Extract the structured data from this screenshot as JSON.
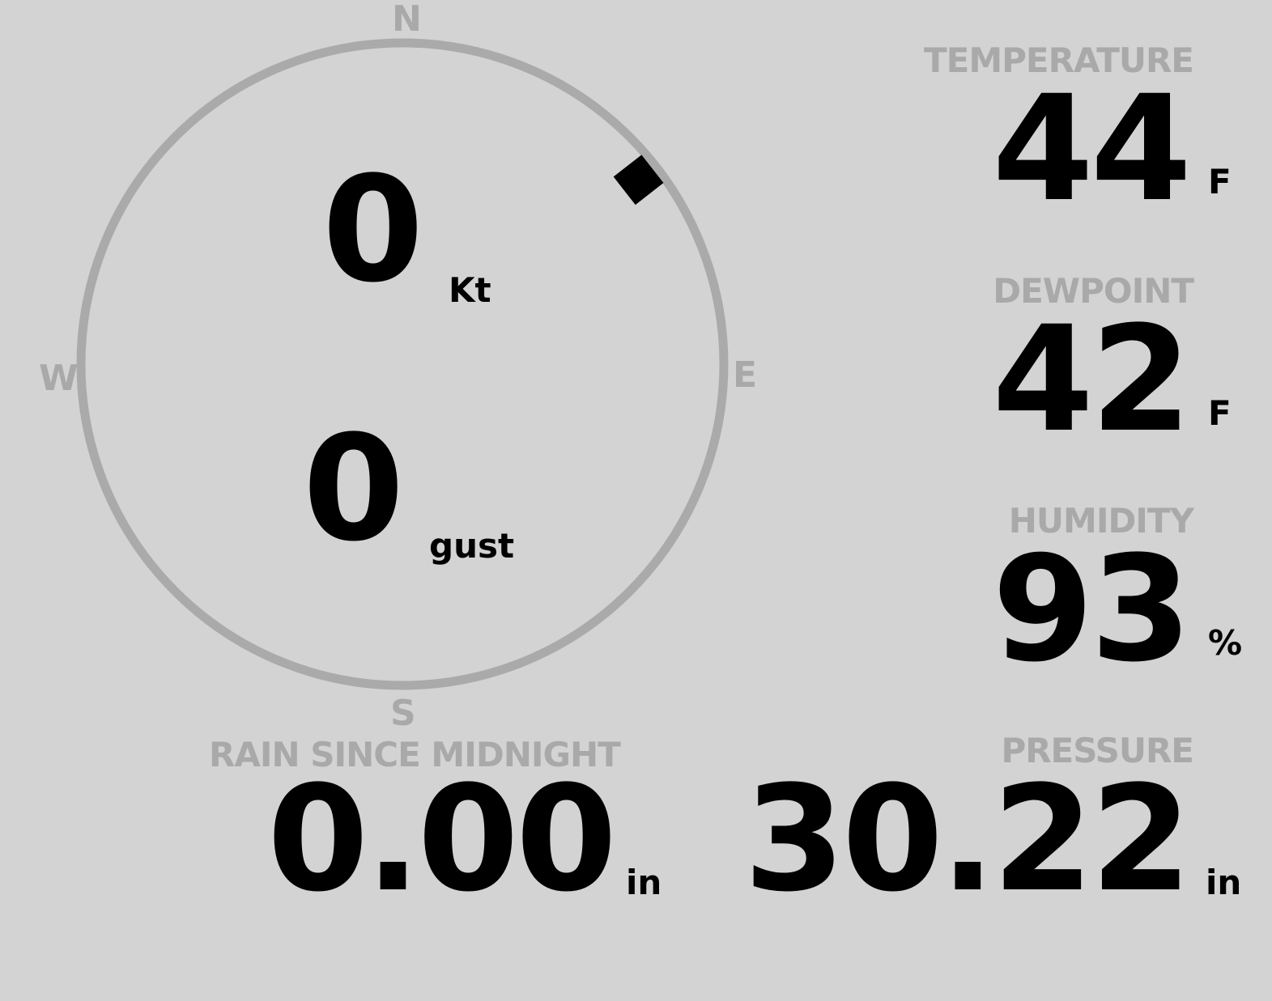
{
  "compass": {
    "n": "N",
    "e": "E",
    "s": "S",
    "w": "W",
    "wind_direction_deg": 52,
    "ring_color": "#aaaaaa"
  },
  "wind": {
    "speed": "0",
    "speed_unit": "Kt",
    "gust": "0",
    "gust_label": "gust"
  },
  "temperature": {
    "label": "TEMPERATURE",
    "value": "44",
    "unit": "F"
  },
  "dewpoint": {
    "label": "DEWPOINT",
    "value": "42",
    "unit": "F"
  },
  "humidity": {
    "label": "HUMIDITY",
    "value": "93",
    "unit": "%"
  },
  "rain": {
    "label": "RAIN SINCE MIDNIGHT",
    "value": "0.00",
    "unit": "in"
  },
  "pressure": {
    "label": "PRESSURE",
    "value": "30.22",
    "unit": "in"
  }
}
